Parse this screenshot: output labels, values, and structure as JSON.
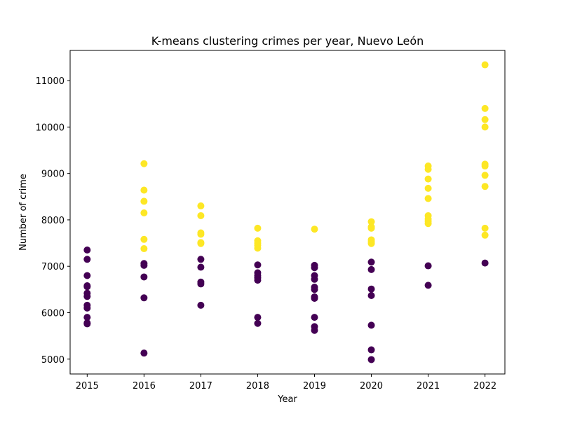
{
  "chart_data": {
    "type": "scatter",
    "title": "K-means clustering crimes per year, Nuevo León",
    "xlabel": "Year",
    "ylabel": "Number of crime",
    "xlim": [
      2014.7,
      2022.35
    ],
    "ylim": [
      4680,
      11650
    ],
    "x_ticks": [
      2015,
      2016,
      2017,
      2018,
      2019,
      2020,
      2021,
      2022
    ],
    "y_ticks": [
      5000,
      6000,
      7000,
      8000,
      9000,
      10000,
      11000
    ],
    "grid": false,
    "legend": "none",
    "series": [
      {
        "color": "#440154",
        "points": [
          [
            2015,
            7350
          ],
          [
            2015,
            7150
          ],
          [
            2015,
            6800
          ],
          [
            2015,
            6580
          ],
          [
            2015,
            6560
          ],
          [
            2015,
            6420
          ],
          [
            2015,
            6350
          ],
          [
            2015,
            6160
          ],
          [
            2015,
            6100
          ],
          [
            2015,
            5900
          ],
          [
            2015,
            5780
          ],
          [
            2015,
            5760
          ],
          [
            2016,
            7060
          ],
          [
            2016,
            7020
          ],
          [
            2016,
            6770
          ],
          [
            2016,
            6320
          ],
          [
            2016,
            5130
          ],
          [
            2017,
            7150
          ],
          [
            2017,
            6980
          ],
          [
            2017,
            6660
          ],
          [
            2017,
            6620
          ],
          [
            2017,
            6160
          ],
          [
            2018,
            7030
          ],
          [
            2018,
            6860
          ],
          [
            2018,
            6800
          ],
          [
            2018,
            6750
          ],
          [
            2018,
            6700
          ],
          [
            2018,
            5900
          ],
          [
            2018,
            5770
          ],
          [
            2019,
            7020
          ],
          [
            2019,
            6970
          ],
          [
            2019,
            6800
          ],
          [
            2019,
            6720
          ],
          [
            2019,
            6550
          ],
          [
            2019,
            6500
          ],
          [
            2019,
            6340
          ],
          [
            2019,
            6310
          ],
          [
            2019,
            5900
          ],
          [
            2019,
            5700
          ],
          [
            2019,
            5620
          ],
          [
            2020,
            7090
          ],
          [
            2020,
            6930
          ],
          [
            2020,
            6510
          ],
          [
            2020,
            6370
          ],
          [
            2020,
            5730
          ],
          [
            2020,
            5200
          ],
          [
            2020,
            4990
          ],
          [
            2021,
            7010
          ],
          [
            2021,
            6590
          ],
          [
            2022,
            7070
          ]
        ]
      },
      {
        "color": "#fde725",
        "points": [
          [
            2016,
            9210
          ],
          [
            2016,
            8640
          ],
          [
            2016,
            8400
          ],
          [
            2016,
            8150
          ],
          [
            2016,
            7580
          ],
          [
            2016,
            7380
          ],
          [
            2017,
            8300
          ],
          [
            2017,
            8090
          ],
          [
            2017,
            7720
          ],
          [
            2017,
            7690
          ],
          [
            2017,
            7510
          ],
          [
            2017,
            7490
          ],
          [
            2018,
            7820
          ],
          [
            2018,
            7550
          ],
          [
            2018,
            7500
          ],
          [
            2018,
            7450
          ],
          [
            2018,
            7390
          ],
          [
            2019,
            7800
          ],
          [
            2020,
            7960
          ],
          [
            2020,
            7850
          ],
          [
            2020,
            7820
          ],
          [
            2020,
            7570
          ],
          [
            2020,
            7530
          ],
          [
            2020,
            7490
          ],
          [
            2021,
            9160
          ],
          [
            2021,
            9090
          ],
          [
            2021,
            8880
          ],
          [
            2021,
            8680
          ],
          [
            2021,
            8460
          ],
          [
            2021,
            8090
          ],
          [
            2021,
            8020
          ],
          [
            2021,
            7970
          ],
          [
            2021,
            7920
          ],
          [
            2022,
            11340
          ],
          [
            2022,
            10400
          ],
          [
            2022,
            10160
          ],
          [
            2022,
            10000
          ],
          [
            2022,
            9200
          ],
          [
            2022,
            9160
          ],
          [
            2022,
            8960
          ],
          [
            2022,
            8720
          ],
          [
            2022,
            7820
          ],
          [
            2022,
            7670
          ]
        ]
      }
    ]
  }
}
